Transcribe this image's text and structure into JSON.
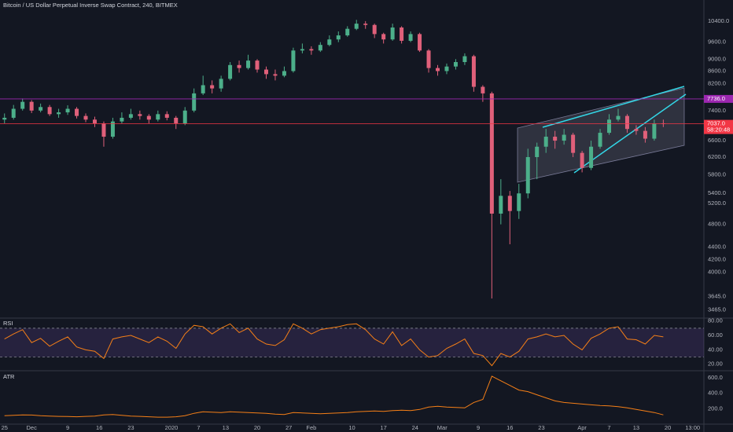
{
  "header": {
    "title": "Bitcoin / US Dollar Perpetual Inverse Swap Contract, 240, BITMEX"
  },
  "chart_data": [
    {
      "type": "candlestick",
      "x": [
        0,
        2,
        4,
        6,
        8,
        10,
        12,
        14,
        16,
        18,
        20,
        22,
        24,
        26,
        28,
        30,
        32,
        34,
        36,
        38,
        40,
        42,
        44,
        46,
        48,
        50,
        52,
        54,
        56,
        58,
        60,
        62,
        64,
        66,
        68,
        70,
        72,
        74,
        76,
        78,
        80,
        82,
        84,
        86,
        88,
        90,
        92,
        94,
        96,
        98,
        100,
        102,
        104,
        106,
        108,
        110,
        112,
        114,
        116,
        118,
        120,
        122,
        124,
        126,
        128,
        130,
        132,
        134,
        136,
        138,
        140,
        142,
        144,
        146
      ],
      "open": [
        7150,
        7200,
        7450,
        7650,
        7400,
        7500,
        7300,
        7350,
        7450,
        7250,
        7150,
        7050,
        6700,
        7100,
        7200,
        7300,
        7250,
        7150,
        7300,
        7200,
        7050,
        7400,
        7900,
        8150,
        8050,
        8350,
        8800,
        8700,
        8950,
        8650,
        8500,
        8450,
        8600,
        9300,
        9350,
        9300,
        9500,
        9700,
        9850,
        10100,
        10300,
        10250,
        9900,
        9700,
        10150,
        9650,
        9900,
        9300,
        8700,
        8600,
        8750,
        8900,
        9100,
        8100,
        7900,
        5000,
        5350,
        5050,
        5400,
        6200,
        6450,
        6700,
        6600,
        6750,
        6300,
        5950,
        6450,
        6800,
        7150,
        7250,
        6900,
        6850,
        6650,
        7050
      ],
      "high": [
        7320,
        7560,
        7750,
        7700,
        7600,
        7560,
        7450,
        7550,
        7500,
        7320,
        7230,
        7100,
        7200,
        7350,
        7450,
        7400,
        7300,
        7400,
        7380,
        7250,
        7500,
        8050,
        8450,
        8300,
        8450,
        8900,
        8950,
        9150,
        9000,
        8750,
        8650,
        8750,
        9400,
        9550,
        9450,
        9600,
        9850,
        10000,
        10200,
        10450,
        10400,
        10300,
        9950,
        10300,
        10200,
        10000,
        9950,
        9350,
        8800,
        8850,
        9000,
        9200,
        9150,
        8150,
        7950,
        5700,
        5450,
        5600,
        6400,
        6550,
        6900,
        6850,
        6900,
        6800,
        6350,
        6600,
        6900,
        7300,
        7450,
        7300,
        7000,
        6950,
        7150,
        7150
      ],
      "low": [
        7050,
        7150,
        7400,
        7330,
        7350,
        7250,
        7200,
        7280,
        7180,
        7080,
        6950,
        6450,
        6650,
        7050,
        7150,
        7150,
        7050,
        7100,
        7130,
        6900,
        7000,
        7350,
        7850,
        7900,
        7950,
        8300,
        8550,
        8650,
        8550,
        8350,
        8300,
        8400,
        8550,
        9200,
        9150,
        9250,
        9450,
        9600,
        9800,
        10050,
        10100,
        9750,
        9550,
        9650,
        9550,
        9600,
        9250,
        8550,
        8450,
        8500,
        8650,
        8800,
        7950,
        7650,
        3620,
        4800,
        4450,
        4900,
        5300,
        5700,
        6300,
        6400,
        6500,
        6200,
        5850,
        5900,
        6400,
        6750,
        7100,
        6800,
        6750,
        6550,
        6600,
        6950
      ],
      "close": [
        7200,
        7450,
        7650,
        7400,
        7500,
        7300,
        7350,
        7450,
        7250,
        7150,
        7050,
        6700,
        7100,
        7200,
        7300,
        7250,
        7150,
        7300,
        7200,
        7050,
        7400,
        7900,
        8150,
        8050,
        8350,
        8800,
        8700,
        8950,
        8650,
        8500,
        8450,
        8600,
        9300,
        9350,
        9300,
        9500,
        9700,
        9850,
        10100,
        10300,
        10250,
        9900,
        9700,
        10150,
        9650,
        9900,
        9300,
        8700,
        8600,
        8750,
        8900,
        9100,
        8100,
        7900,
        5000,
        5350,
        5050,
        5400,
        6200,
        6450,
        6700,
        6600,
        6750,
        6300,
        5950,
        6450,
        6800,
        7150,
        7250,
        6900,
        6850,
        6650,
        7050,
        7037
      ],
      "up_color": "#4caf8a",
      "down_color": "#e0607a",
      "log": true,
      "ylim": [
        3360,
        11270
      ],
      "yticks": [
        {
          "value": 10400,
          "label": "10400.0"
        },
        {
          "value": 9600,
          "label": "9600.0"
        },
        {
          "value": 9000,
          "label": "9000.0"
        },
        {
          "value": 8600,
          "label": "8600.0"
        },
        {
          "value": 8200,
          "label": "8200.0"
        },
        {
          "value": 7400,
          "label": "7400.0"
        },
        {
          "value": 6600,
          "label": "6600.0"
        },
        {
          "value": 6200,
          "label": "6200.0"
        },
        {
          "value": 5800,
          "label": "5800.0"
        },
        {
          "value": 5400,
          "label": "5400.0"
        },
        {
          "value": 5200,
          "label": "5200.0"
        },
        {
          "value": 4800,
          "label": "4800.0"
        },
        {
          "value": 4400,
          "label": "4400.0"
        },
        {
          "value": 4200,
          "label": "4200.0"
        },
        {
          "value": 4000,
          "label": "4000.0"
        },
        {
          "value": 3645,
          "label": "3645.0"
        },
        {
          "value": 3465,
          "label": "3465.0"
        }
      ],
      "xlim": [
        -1,
        155
      ],
      "xticks": [
        {
          "value": 0,
          "label": "25"
        },
        {
          "value": 6,
          "label": "Dec"
        },
        {
          "value": 14,
          "label": "9"
        },
        {
          "value": 21,
          "label": "16"
        },
        {
          "value": 28,
          "label": "23"
        },
        {
          "value": 37,
          "label": "2020"
        },
        {
          "value": 43,
          "label": "7"
        },
        {
          "value": 49,
          "label": "13"
        },
        {
          "value": 56,
          "label": "20"
        },
        {
          "value": 63,
          "label": "27"
        },
        {
          "value": 68,
          "label": "Feb"
        },
        {
          "value": 77,
          "label": "10"
        },
        {
          "value": 84,
          "label": "17"
        },
        {
          "value": 91,
          "label": "24"
        },
        {
          "value": 97,
          "label": "Mar"
        },
        {
          "value": 105,
          "label": "9"
        },
        {
          "value": 112,
          "label": "16"
        },
        {
          "value": 119,
          "label": "23"
        },
        {
          "value": 128,
          "label": "Apr"
        },
        {
          "value": 134,
          "label": "7"
        },
        {
          "value": 140,
          "label": "13"
        },
        {
          "value": 147,
          "label": "20"
        },
        {
          "value": 152.5,
          "label": "13:00"
        }
      ],
      "price_lines": [
        {
          "value": 7736,
          "label": "7736.0",
          "color": "#9c27b0"
        },
        {
          "value": 7037,
          "label": "7037.0",
          "color": "#f23645",
          "countdown": "58:20:48"
        }
      ]
    },
    {
      "type": "line",
      "title": "RSI",
      "values": [
        55,
        62,
        68,
        50,
        56,
        45,
        52,
        58,
        44,
        40,
        38,
        28,
        55,
        58,
        60,
        55,
        50,
        58,
        52,
        42,
        62,
        74,
        72,
        62,
        70,
        76,
        64,
        70,
        55,
        48,
        46,
        54,
        76,
        70,
        62,
        68,
        70,
        72,
        75,
        76,
        68,
        55,
        48,
        65,
        46,
        55,
        40,
        30,
        32,
        42,
        48,
        55,
        35,
        32,
        18,
        35,
        30,
        38,
        55,
        58,
        62,
        58,
        60,
        48,
        40,
        56,
        62,
        70,
        72,
        55,
        54,
        48,
        60,
        58
      ],
      "color": "#f57f17",
      "band": [
        30,
        70
      ],
      "band_color": "#7e57c2",
      "ylim": [
        11,
        84
      ],
      "yticks": [
        {
          "value": 80,
          "label": "80.00"
        },
        {
          "value": 60,
          "label": "60.00"
        },
        {
          "value": 40,
          "label": "40.00"
        },
        {
          "value": 20,
          "label": "20.00"
        }
      ]
    },
    {
      "type": "line",
      "title": "ATR",
      "values": [
        110,
        115,
        120,
        118,
        110,
        105,
        100,
        98,
        95,
        100,
        105,
        120,
        125,
        115,
        105,
        100,
        95,
        90,
        90,
        95,
        110,
        140,
        160,
        155,
        150,
        160,
        155,
        150,
        145,
        140,
        130,
        125,
        150,
        145,
        140,
        135,
        140,
        145,
        150,
        160,
        165,
        170,
        165,
        175,
        180,
        175,
        190,
        220,
        230,
        220,
        215,
        210,
        280,
        320,
        620,
        560,
        500,
        440,
        420,
        380,
        340,
        300,
        280,
        270,
        260,
        250,
        240,
        235,
        225,
        210,
        190,
        170,
        150,
        120
      ],
      "color": "#f57f17",
      "ylim": [
        0,
        690
      ],
      "yticks": [
        {
          "value": 600,
          "label": "600.0"
        },
        {
          "value": 400,
          "label": "400.0"
        },
        {
          "value": 200,
          "label": "200.0"
        }
      ]
    }
  ]
}
